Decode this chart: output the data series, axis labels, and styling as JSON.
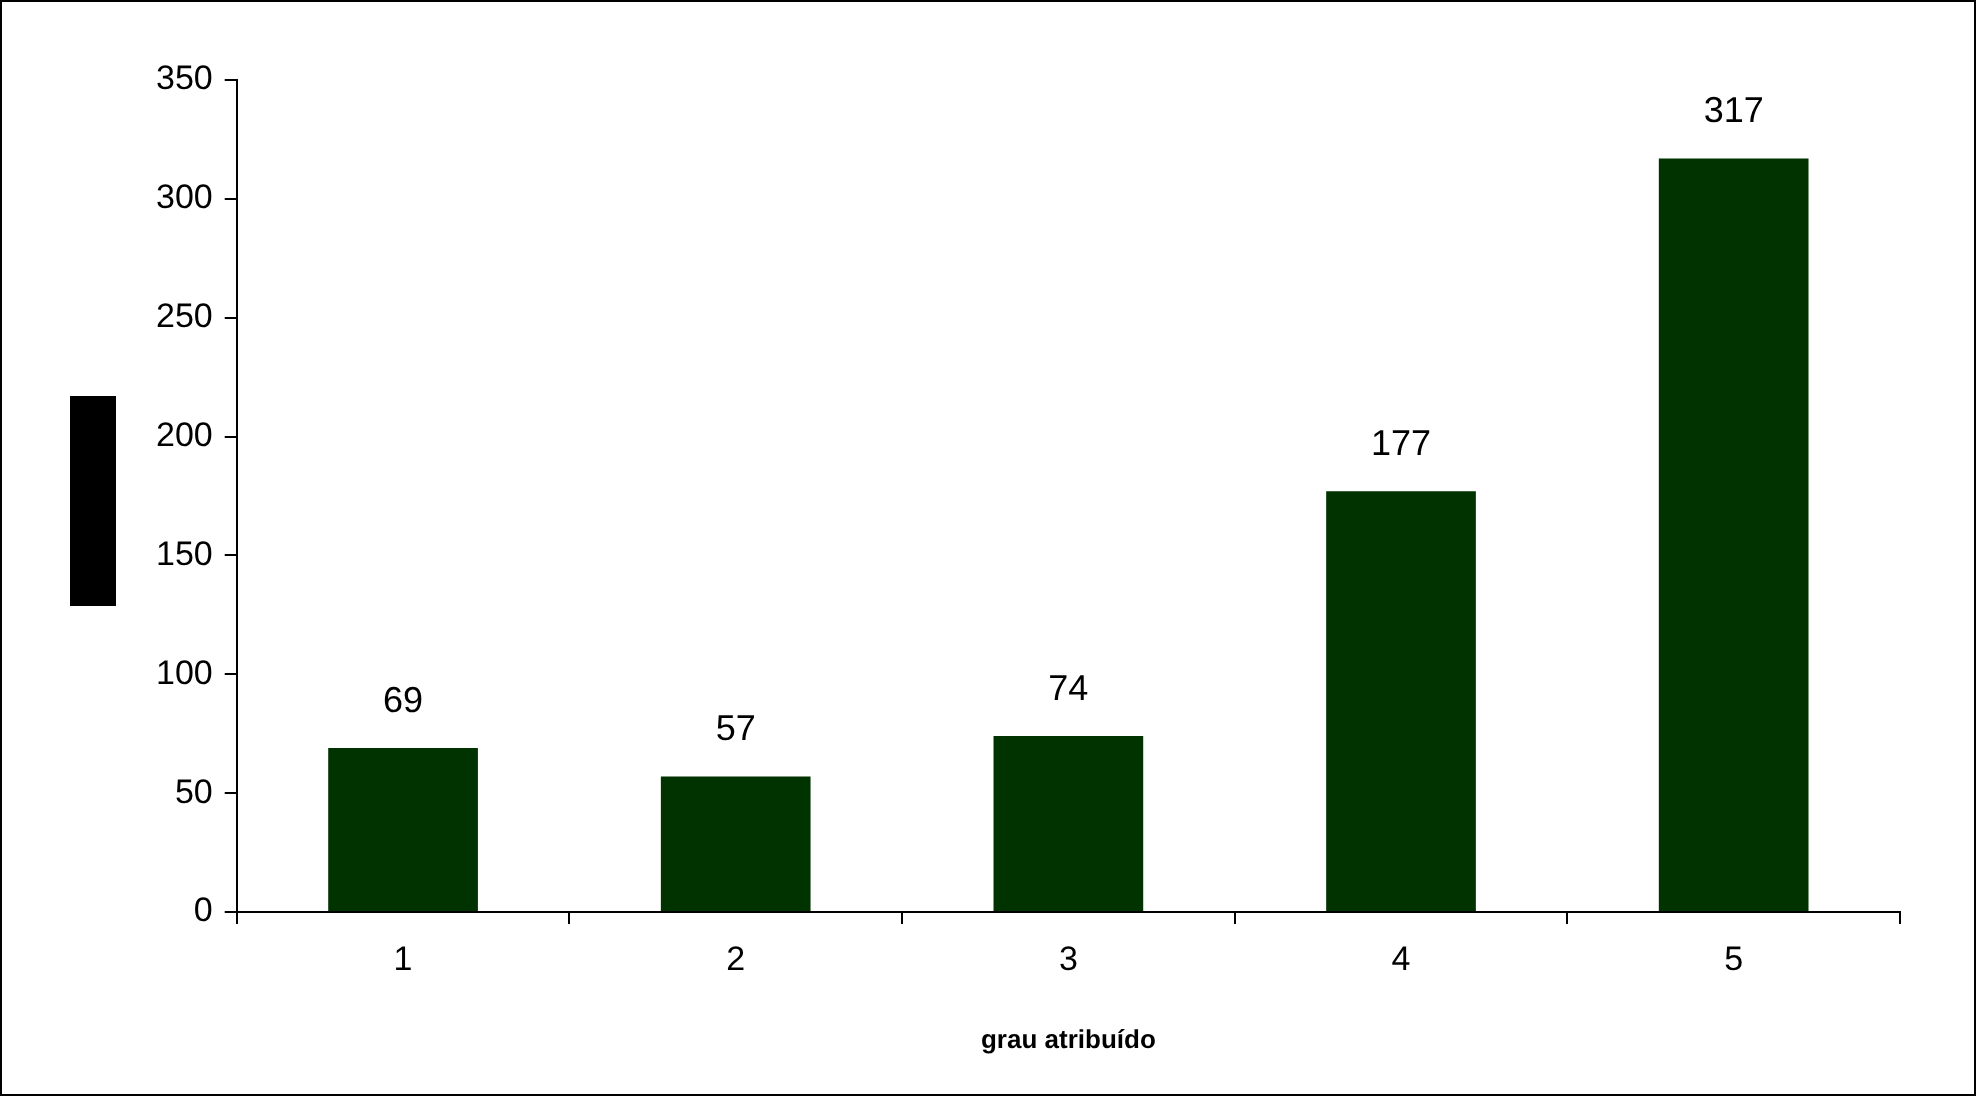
{
  "chart_data": {
    "type": "bar",
    "xlabel": "grau atribuído",
    "categories": [
      "1",
      "2",
      "3",
      "4",
      "5"
    ],
    "values": [
      69,
      57,
      74,
      177,
      317
    ],
    "color": "#003300",
    "ylim": [
      0,
      350
    ],
    "yticks": [
      0,
      50,
      100,
      150,
      200,
      250,
      300,
      350
    ],
    "grid": false,
    "legend": false,
    "data_labels": true
  }
}
